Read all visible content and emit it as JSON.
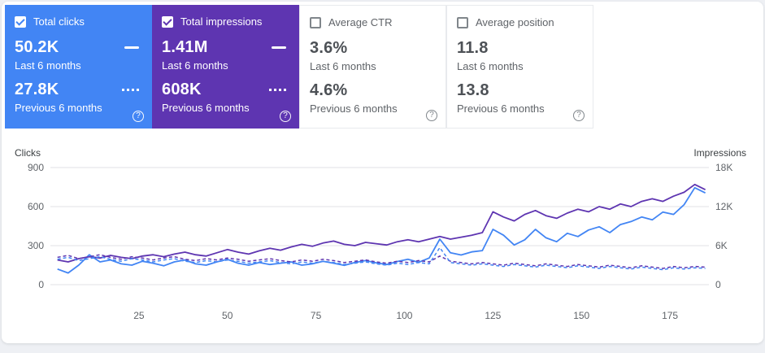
{
  "colors": {
    "clicks_accent": "#4285f4",
    "impressions_accent": "#5e35b1",
    "panel_bg": "#ffffff",
    "page_bg": "#eef0f4"
  },
  "icons": {
    "help": "?"
  },
  "cards": [
    {
      "label": "Total clicks",
      "checked": true,
      "current": {
        "value": "50.2K",
        "period": "Last 6 months"
      },
      "previous": {
        "value": "27.8K",
        "period": "Previous 6 months"
      }
    },
    {
      "label": "Total impressions",
      "checked": true,
      "current": {
        "value": "1.41M",
        "period": "Last 6 months"
      },
      "previous": {
        "value": "608K",
        "period": "Previous 6 months"
      }
    },
    {
      "label": "Average CTR",
      "checked": false,
      "current": {
        "value": "3.6%",
        "period": "Last 6 months"
      },
      "previous": {
        "value": "4.6%",
        "period": "Previous 6 months"
      }
    },
    {
      "label": "Average position",
      "checked": false,
      "current": {
        "value": "11.8",
        "period": "Last 6 months"
      },
      "previous": {
        "value": "13.8",
        "period": "Previous 6 months"
      }
    }
  ],
  "chart_data": {
    "type": "line",
    "left_axis": {
      "label": "Clicks",
      "ticks": [
        "900",
        "600",
        "300",
        "0"
      ],
      "max": 900
    },
    "right_axis": {
      "label": "Impressions",
      "ticks": [
        "18K",
        "12K",
        "6K",
        "0"
      ],
      "max": 18000
    },
    "x_ticks": [
      25,
      50,
      75,
      100,
      125,
      150,
      175
    ],
    "x_max": 186,
    "grid": true,
    "legend_position": "none",
    "series": [
      {
        "name": "Impressions - Last 6 months",
        "axis": "right",
        "color": "#5e35b1",
        "dash": false,
        "values": [
          3800,
          3500,
          4000,
          4300,
          4100,
          4500,
          4200,
          4000,
          4400,
          4600,
          4300,
          4700,
          5000,
          4600,
          4400,
          4900,
          5400,
          5000,
          4700,
          5200,
          5600,
          5300,
          5800,
          6200,
          5900,
          6400,
          6700,
          6200,
          6000,
          6500,
          6300,
          6100,
          6600,
          6900,
          6600,
          7000,
          7400,
          7000,
          7300,
          7600,
          8000,
          11200,
          10400,
          9800,
          10800,
          11400,
          10600,
          10200,
          11000,
          11600,
          11200,
          12000,
          11600,
          12400,
          12000,
          12800,
          13200,
          12800,
          13600,
          14200,
          15400,
          14600
        ]
      },
      {
        "name": "Clicks - Last 6 months",
        "axis": "left",
        "color": "#4285f4",
        "dash": false,
        "values": [
          120,
          90,
          150,
          230,
          175,
          190,
          160,
          150,
          180,
          165,
          145,
          175,
          190,
          160,
          150,
          175,
          195,
          165,
          150,
          170,
          155,
          165,
          175,
          150,
          160,
          180,
          165,
          148,
          170,
          185,
          168,
          155,
          178,
          195,
          172,
          205,
          350,
          245,
          228,
          252,
          262,
          425,
          380,
          305,
          345,
          425,
          360,
          330,
          395,
          370,
          420,
          445,
          400,
          462,
          485,
          520,
          498,
          558,
          540,
          615,
          745,
          705
        ]
      },
      {
        "name": "Impressions - Previous 6 months",
        "axis": "right",
        "color": "#5e35b1",
        "dash": true,
        "values": [
          4200,
          4500,
          4000,
          4300,
          4600,
          4200,
          3900,
          4300,
          4100,
          3800,
          4100,
          4300,
          3900,
          3700,
          4000,
          3800,
          4100,
          3900,
          3600,
          3800,
          4000,
          3700,
          3500,
          3800,
          3600,
          3900,
          3700,
          3400,
          3600,
          3800,
          3500,
          3300,
          3600,
          3400,
          3700,
          3500,
          4400,
          3600,
          3400,
          3200,
          3400,
          3200,
          3000,
          3300,
          3100,
          2900,
          3200,
          3000,
          2800,
          3100,
          2900,
          2700,
          3000,
          2800,
          2600,
          2900,
          2700,
          2500,
          2800,
          2600,
          2800,
          2700
        ]
      },
      {
        "name": "Clicks - Previous 6 months",
        "axis": "left",
        "color": "#4285f4",
        "dash": true,
        "values": [
          195,
          210,
          185,
          200,
          215,
          195,
          180,
          200,
          190,
          175,
          190,
          200,
          180,
          170,
          185,
          175,
          190,
          180,
          165,
          175,
          185,
          170,
          160,
          175,
          165,
          180,
          170,
          155,
          165,
          175,
          160,
          150,
          165,
          155,
          170,
          160,
          285,
          170,
          160,
          150,
          160,
          150,
          140,
          155,
          145,
          135,
          150,
          140,
          130,
          145,
          135,
          125,
          140,
          130,
          120,
          135,
          125,
          115,
          130,
          120,
          130,
          125
        ]
      }
    ]
  }
}
